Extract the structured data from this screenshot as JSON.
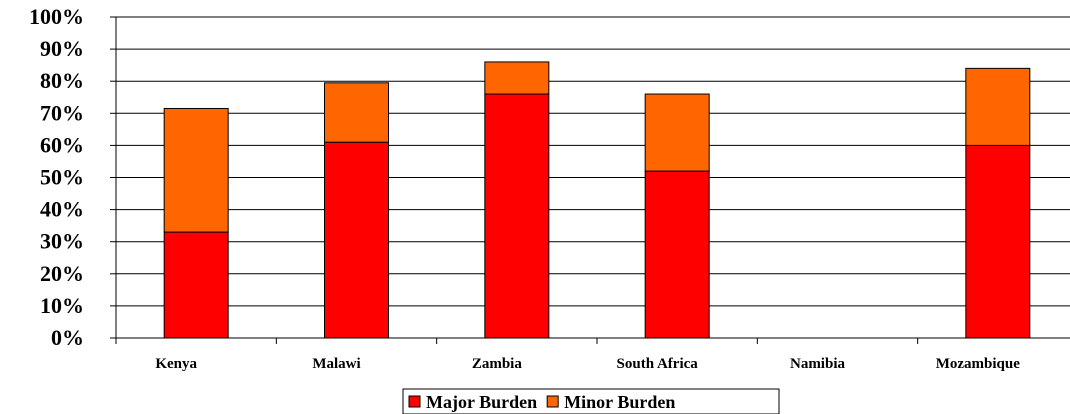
{
  "chart_data": {
    "type": "bar",
    "stacked": true,
    "categories": [
      "Kenya",
      "Malawi",
      "Zambia",
      "South Africa",
      "Namibia",
      "Mozambique"
    ],
    "series": [
      {
        "name": "Major Burden",
        "color": "#ff0000",
        "values": [
          33,
          61,
          76,
          52,
          0,
          60
        ]
      },
      {
        "name": "Minor Burden",
        "color": "#ff6600",
        "values": [
          38.5,
          18.5,
          10,
          24,
          0,
          24
        ]
      }
    ],
    "ylim": [
      0,
      100
    ],
    "yticks": [
      "0%",
      "10%",
      "20%",
      "30%",
      "40%",
      "50%",
      "60%",
      "70%",
      "80%",
      "90%",
      "100%"
    ],
    "grid": true,
    "legend_position": "bottom"
  }
}
